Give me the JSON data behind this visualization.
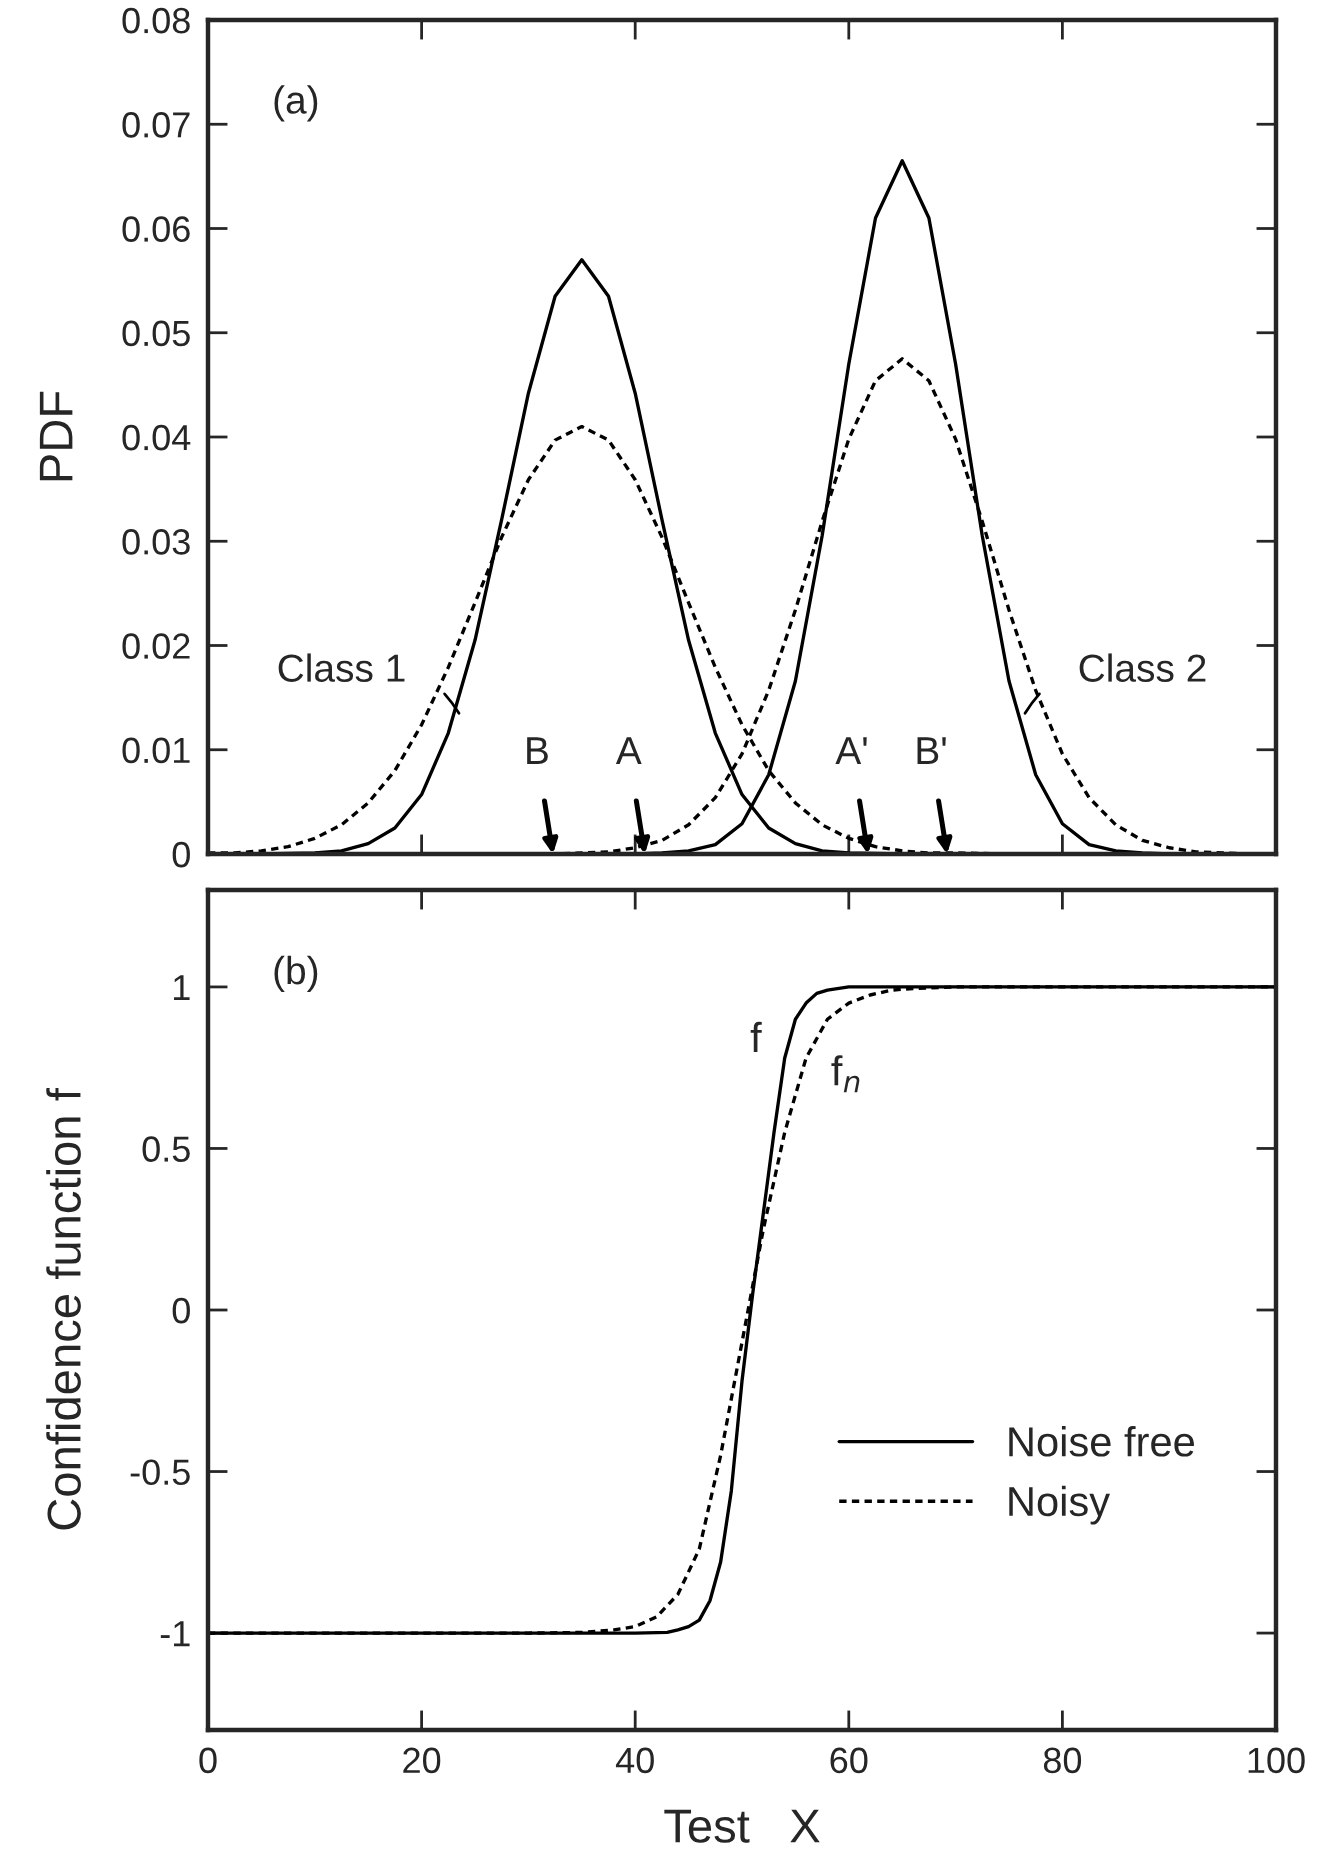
{
  "chart_data": [
    {
      "type": "line",
      "ylabel": "PDF",
      "xlim": [
        0,
        100
      ],
      "xticks": [
        0,
        20,
        40,
        60,
        80,
        100
      ],
      "ylim": [
        0,
        0.08
      ],
      "yticks": [
        0,
        0.01,
        0.02,
        0.03,
        0.04,
        0.05,
        0.06,
        0.07,
        0.08
      ],
      "tick_labels": "y",
      "grid": false,
      "legend": false,
      "annotations": [
        "(a)",
        {
          "text": "Class 1",
          "x": 23.5,
          "y": 0.0135
        },
        {
          "text": "Class 2",
          "x": 76.5,
          "y": 0.0135
        },
        {
          "text": "B",
          "x": 32.3,
          "y": 0
        },
        {
          "text": "A",
          "x": 40.9,
          "y": 0
        },
        {
          "text": "A'",
          "x": 61.8,
          "y": 0
        },
        {
          "text": "B'",
          "x": 69.2,
          "y": 0
        }
      ],
      "series": [
        {
          "color": "#000000",
          "line_style": "solid",
          "x": [
            0,
            5,
            10,
            12.5,
            15,
            17.5,
            20,
            22.5,
            25,
            27.5,
            30,
            32.5,
            35,
            37.5,
            40,
            42.5,
            45,
            47.5,
            50,
            52.5,
            55,
            57.5,
            60,
            65,
            70,
            75,
            80,
            85,
            90,
            95,
            100
          ],
          "values": [
            0,
            0,
            0.0001,
            0.0003,
            0.001,
            0.0025,
            0.0057,
            0.0116,
            0.0205,
            0.0321,
            0.0442,
            0.0535,
            0.057,
            0.0535,
            0.0442,
            0.0321,
            0.0205,
            0.0116,
            0.0057,
            0.0025,
            0.001,
            0.0003,
            0.0001,
            0,
            0,
            0,
            0,
            0,
            0,
            0,
            0
          ]
        },
        {
          "color": "#000000",
          "line_style": "dashed",
          "x": [
            0,
            2.5,
            5,
            7.5,
            10,
            12.5,
            15,
            17.5,
            20,
            22.5,
            25,
            27.5,
            30,
            32.5,
            35,
            37.5,
            40,
            42.5,
            45,
            47.5,
            50,
            52.5,
            55,
            57.5,
            60,
            62.5,
            65,
            67.5,
            70,
            75,
            80,
            85,
            90,
            95,
            100
          ],
          "values": [
            0.0001,
            0.0001,
            0.0003,
            0.0007,
            0.0015,
            0.0028,
            0.0049,
            0.008,
            0.0124,
            0.0179,
            0.0241,
            0.0304,
            0.0359,
            0.0397,
            0.041,
            0.0397,
            0.0359,
            0.0304,
            0.0241,
            0.0179,
            0.0124,
            0.008,
            0.0049,
            0.0028,
            0.0015,
            0.0007,
            0.0003,
            0.0001,
            0.0001,
            0,
            0,
            0,
            0,
            0,
            0
          ]
        },
        {
          "color": "#000000",
          "line_style": "solid",
          "x": [
            0,
            5,
            10,
            15,
            20,
            25,
            30,
            35,
            40,
            42.5,
            45,
            47.5,
            50,
            52.5,
            55,
            57.5,
            60,
            62.5,
            65,
            67.5,
            70,
            72.5,
            75,
            77.5,
            80,
            82.5,
            85,
            87.5,
            90,
            95,
            100
          ],
          "values": [
            0,
            0,
            0,
            0,
            0,
            0,
            0,
            0,
            0,
            0.0001,
            0.0003,
            0.0009,
            0.0029,
            0.0076,
            0.0166,
            0.0305,
            0.047,
            0.061,
            0.0665,
            0.061,
            0.047,
            0.0305,
            0.0166,
            0.0076,
            0.0029,
            0.0009,
            0.0003,
            0.0001,
            0,
            0,
            0
          ]
        },
        {
          "color": "#000000",
          "line_style": "dashed",
          "x": [
            0,
            5,
            10,
            15,
            20,
            25,
            30,
            32.5,
            35,
            37.5,
            40,
            42.5,
            45,
            47.5,
            50,
            52.5,
            55,
            57.5,
            60,
            62.5,
            65,
            67.5,
            70,
            72.5,
            75,
            77.5,
            80,
            82.5,
            85,
            87.5,
            90,
            92.5,
            95,
            97.5,
            100
          ],
          "values": [
            0,
            0,
            0,
            0,
            0,
            0,
            0,
            0,
            0.0001,
            0.0002,
            0.0006,
            0.0013,
            0.0028,
            0.0054,
            0.0096,
            0.0157,
            0.0234,
            0.0319,
            0.0398,
            0.0454,
            0.0475,
            0.0454,
            0.0398,
            0.0319,
            0.0234,
            0.0157,
            0.0096,
            0.0054,
            0.0028,
            0.0013,
            0.0006,
            0.0002,
            0.0001,
            0,
            0
          ]
        }
      ]
    },
    {
      "type": "line",
      "xlabel": "Test   X",
      "ylabel": "Confidence function f",
      "xlim": [
        0,
        100
      ],
      "xticks": [
        0,
        20,
        40,
        60,
        80,
        100
      ],
      "ylim": [
        -1.3,
        1.3
      ],
      "yticks": [
        -1,
        -0.5,
        0,
        0.5,
        1
      ],
      "grid": false,
      "legend": "bottom right",
      "annotations": [
        "(b)",
        "f",
        "f$_{n}$"
      ],
      "series": [
        {
          "name": "Noise free",
          "color": "#000000",
          "line_style": "solid",
          "x": [
            0,
            20,
            40,
            43,
            44,
            45,
            46,
            47,
            48,
            49,
            50,
            51,
            52,
            53,
            54,
            55,
            56,
            57,
            58,
            60,
            70,
            80,
            100
          ],
          "values": [
            -1,
            -1,
            -1,
            -0.998,
            -0.99,
            -0.98,
            -0.96,
            -0.9,
            -0.78,
            -0.56,
            -0.22,
            0.05,
            0.3,
            0.55,
            0.78,
            0.9,
            0.95,
            0.98,
            0.99,
            1,
            1,
            1,
            1
          ]
        },
        {
          "name": "Noisy",
          "color": "#000000",
          "line_style": "dashed",
          "x": [
            0,
            20,
            30,
            35,
            38,
            40,
            42,
            44,
            46,
            48,
            50,
            52,
            54,
            56,
            58,
            60,
            62,
            64,
            66,
            70,
            80,
            100
          ],
          "values": [
            -1,
            -1,
            -1,
            -0.998,
            -0.99,
            -0.98,
            -0.95,
            -0.88,
            -0.74,
            -0.45,
            -0.1,
            0.25,
            0.55,
            0.78,
            0.9,
            0.95,
            0.975,
            0.99,
            0.995,
            1,
            1,
            1
          ]
        }
      ]
    }
  ]
}
